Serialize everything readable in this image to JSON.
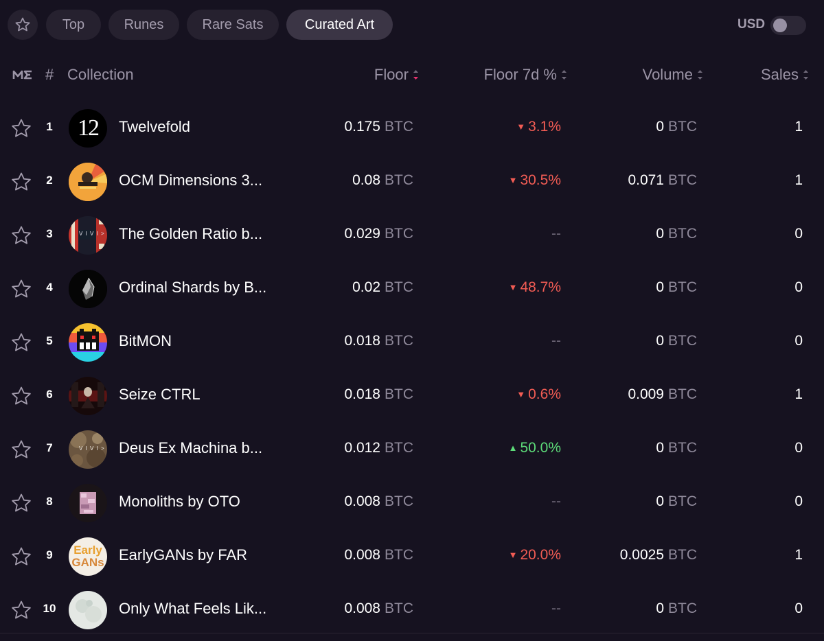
{
  "tabs": [
    {
      "label": "Top"
    },
    {
      "label": "Runes"
    },
    {
      "label": "Rare Sats"
    },
    {
      "label": "Curated Art",
      "active": true
    }
  ],
  "currency_toggle": {
    "label": "USD",
    "enabled": false
  },
  "table": {
    "columns": {
      "rank": "#",
      "collection": "Collection",
      "floor": "Floor",
      "floor_7d": "Floor 7d %",
      "volume": "Volume",
      "sales": "Sales"
    },
    "unit": "BTC",
    "rows": [
      {
        "rank": "1",
        "name": "Twelvefold",
        "floor": "0.175",
        "change": "3.1%",
        "direction": "down",
        "volume": "0",
        "sales": "1"
      },
      {
        "rank": "2",
        "name": "OCM Dimensions 3...",
        "floor": "0.08",
        "change": "30.5%",
        "direction": "down",
        "volume": "0.071",
        "sales": "1"
      },
      {
        "rank": "3",
        "name": "The Golden Ratio b...",
        "floor": "0.029",
        "change": "--",
        "direction": "none",
        "volume": "0",
        "sales": "0"
      },
      {
        "rank": "4",
        "name": "Ordinal Shards by B...",
        "floor": "0.02",
        "change": "48.7%",
        "direction": "down",
        "volume": "0",
        "sales": "0"
      },
      {
        "rank": "5",
        "name": "BitMON",
        "floor": "0.018",
        "change": "--",
        "direction": "none",
        "volume": "0",
        "sales": "0"
      },
      {
        "rank": "6",
        "name": "Seize CTRL",
        "floor": "0.018",
        "change": "0.6%",
        "direction": "down",
        "volume": "0.009",
        "sales": "1"
      },
      {
        "rank": "7",
        "name": "Deus Ex Machina b...",
        "floor": "0.012",
        "change": "50.0%",
        "direction": "up",
        "volume": "0",
        "sales": "0"
      },
      {
        "rank": "8",
        "name": "Monoliths by OTO",
        "floor": "0.008",
        "change": "--",
        "direction": "none",
        "volume": "0",
        "sales": "0"
      },
      {
        "rank": "9",
        "name": "EarlyGANs by FAR",
        "floor": "0.008",
        "change": "20.0%",
        "direction": "down",
        "volume": "0.0025",
        "sales": "1"
      },
      {
        "rank": "10",
        "name": "Only What Feels Lik...",
        "floor": "0.008",
        "change": "--",
        "direction": "none",
        "volume": "0",
        "sales": "0"
      }
    ]
  },
  "avatar_texts": {
    "twelvefold": "12",
    "vivi": "V I V I >",
    "early": "Early",
    "gans": "GANs"
  },
  "colors": {
    "background": "#161220",
    "negative": "#f25c54",
    "positive": "#5ddc79",
    "muted": "#8f899a"
  }
}
